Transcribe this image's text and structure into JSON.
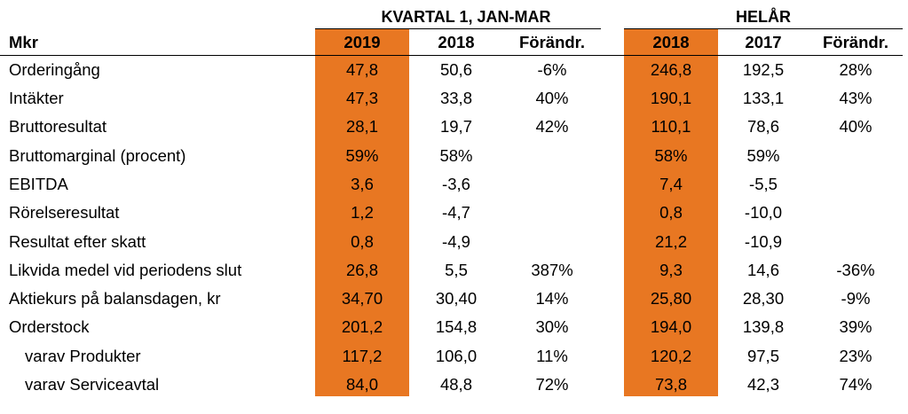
{
  "groups": {
    "quarter": "KVARTAL 1,  JAN-MAR",
    "full_year": "HELÅR"
  },
  "header": {
    "unit": "Mkr",
    "cols": [
      "2019",
      "2018",
      "Förändr.",
      "2018",
      "2017",
      "Förändr."
    ]
  },
  "colors": {
    "highlight": "#e87722"
  },
  "rows": [
    {
      "label": "Orderingång",
      "values": [
        "47,8",
        "50,6",
        "-6%",
        "246,8",
        "192,5",
        "28%"
      ]
    },
    {
      "label": "Intäkter",
      "values": [
        "47,3",
        "33,8",
        "40%",
        "190,1",
        "133,1",
        "43%"
      ]
    },
    {
      "label": "Bruttoresultat",
      "values": [
        "28,1",
        "19,7",
        "42%",
        "110,1",
        "78,6",
        "40%"
      ]
    },
    {
      "label": "Bruttomarginal (procent)",
      "values": [
        "59%",
        "58%",
        "",
        "58%",
        "59%",
        ""
      ]
    },
    {
      "label": "EBITDA",
      "values": [
        "3,6",
        "-3,6",
        "",
        "7,4",
        "-5,5",
        ""
      ]
    },
    {
      "label": "Rörelseresultat",
      "values": [
        "1,2",
        "-4,7",
        "",
        "0,8",
        "-10,0",
        ""
      ]
    },
    {
      "label": "Resultat efter skatt",
      "values": [
        "0,8",
        "-4,9",
        "",
        "21,2",
        "-10,9",
        ""
      ]
    },
    {
      "label": "Likvida medel vid periodens slut",
      "values": [
        "26,8",
        "5,5",
        "387%",
        "9,3",
        "14,6",
        "-36%"
      ]
    },
    {
      "label": "Aktiekurs på balansdagen, kr",
      "values": [
        "34,70",
        "30,40",
        "14%",
        "25,80",
        "28,30",
        "-9%"
      ]
    },
    {
      "label": "Orderstock",
      "values": [
        "201,2",
        "154,8",
        "30%",
        "194,0",
        "139,8",
        "39%"
      ]
    },
    {
      "label": "varav Produkter",
      "sub": true,
      "values": [
        "117,2",
        "106,0",
        "11%",
        "120,2",
        "97,5",
        "23%"
      ]
    },
    {
      "label": "varav Serviceavtal",
      "sub": true,
      "values": [
        "84,0",
        "48,8",
        "72%",
        "73,8",
        "42,3",
        "74%"
      ]
    }
  ]
}
